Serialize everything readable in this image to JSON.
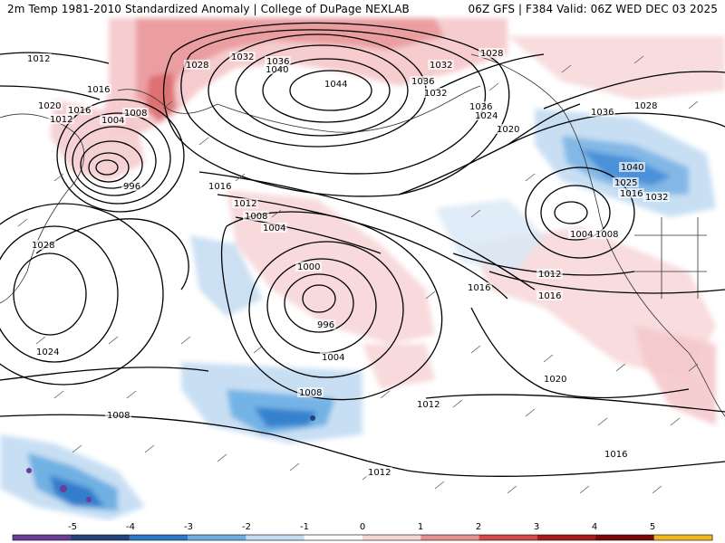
{
  "header": {
    "title_left": "2m Temp 1981-2010 Standardized Anomaly | College of DuPage NEXLAB",
    "title_right": "06Z GFS | F384 Valid: 06Z WED DEC 03 2025"
  },
  "isobar_labels": [
    "1012",
    "1016",
    "1020",
    "1012",
    "1016",
    "1004",
    "1008",
    "996",
    "1028",
    "1032",
    "1036",
    "1040",
    "1044",
    "1036",
    "1032",
    "1028",
    "1036",
    "1024",
    "1032",
    "1036",
    "1028",
    "1020",
    "1040",
    "1025",
    "1016",
    "1032",
    "1004",
    "1008",
    "1016",
    "1012",
    "1008",
    "1004",
    "1000",
    "996",
    "1004",
    "1008",
    "1012",
    "1016",
    "1016",
    "1012",
    "1008",
    "1012",
    "1016",
    "1020",
    "1024",
    "1028"
  ],
  "colorbar": {
    "ticks": [
      "-5",
      "-4",
      "-3",
      "-2",
      "-1",
      "0",
      "1",
      "2",
      "3",
      "4",
      "5"
    ],
    "colors": [
      "#6a3d9a",
      "#23437a",
      "#2c78c9",
      "#6baee3",
      "#c5ddf2",
      "#ffffff",
      "#f8d4d4",
      "#e8908f",
      "#d24a4a",
      "#a61c1c",
      "#7a0a0a",
      "#f2b51b"
    ]
  }
}
